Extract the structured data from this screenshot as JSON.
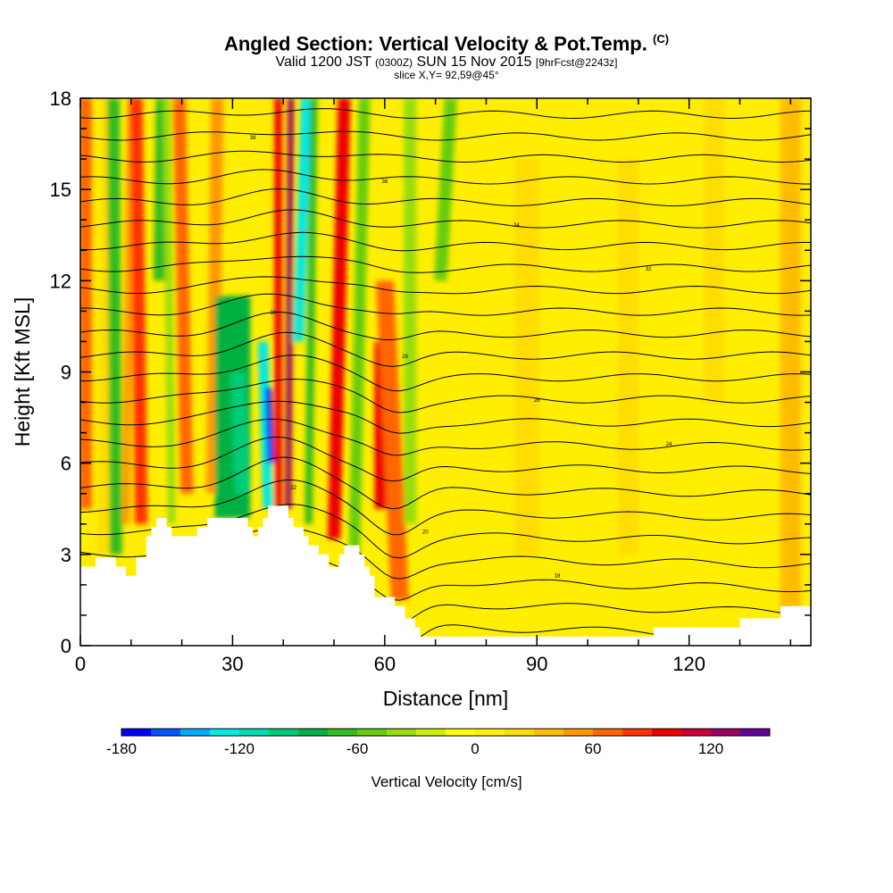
{
  "header": {
    "title_main": "Angled Section: Vertical Velocity & Pot.Temp.",
    "title_tag": "(C)",
    "valid_prefix": "Valid 1200 JST",
    "valid_utc": "(0300Z)",
    "valid_date": "SUN 15 Nov 2015",
    "forecast": "[9hrFcst@2243z]",
    "slice": "slice X,Y= 92,59@45°"
  },
  "chart_data": {
    "type": "heatmap",
    "xlabel": "Distance [nm]",
    "ylabel": "Height [Kft MSL]",
    "xlim": [
      0,
      144
    ],
    "ylim": [
      0,
      18
    ],
    "x_ticks": [
      0,
      30,
      60,
      90,
      120
    ],
    "x_tick_labels": [
      "0",
      "30",
      "60",
      "90",
      "120"
    ],
    "y_ticks": [
      0,
      3,
      6,
      9,
      12,
      15,
      18
    ],
    "y_tick_labels": [
      "0",
      "3",
      "6",
      "9",
      "12",
      "15",
      "18"
    ],
    "colorbar": {
      "title": "Vertical Velocity [cm/s]",
      "tick_values": [
        -180,
        -120,
        -60,
        0,
        60,
        120
      ],
      "tick_labels": [
        "-180",
        "-120",
        "-60",
        "0",
        "60",
        "120"
      ],
      "bins": [
        {
          "from": -180,
          "to": -165,
          "color": "#0000ff"
        },
        {
          "from": -165,
          "to": -150,
          "color": "#0055ff"
        },
        {
          "from": -150,
          "to": -135,
          "color": "#00aaff"
        },
        {
          "from": -135,
          "to": -120,
          "color": "#00e8e8"
        },
        {
          "from": -120,
          "to": -105,
          "color": "#00ddb5"
        },
        {
          "from": -105,
          "to": -90,
          "color": "#00cc77"
        },
        {
          "from": -90,
          "to": -75,
          "color": "#00b040"
        },
        {
          "from": -75,
          "to": -60,
          "color": "#33bb22"
        },
        {
          "from": -60,
          "to": -45,
          "color": "#66cc11"
        },
        {
          "from": -45,
          "to": -30,
          "color": "#99dd11"
        },
        {
          "from": -30,
          "to": -15,
          "color": "#ccee00"
        },
        {
          "from": -15,
          "to": 0,
          "color": "#ffff00"
        },
        {
          "from": 0,
          "to": 15,
          "color": "#ffee00"
        },
        {
          "from": 15,
          "to": 30,
          "color": "#ffdd00"
        },
        {
          "from": 30,
          "to": 45,
          "color": "#ffbb00"
        },
        {
          "from": 45,
          "to": 60,
          "color": "#ff9900"
        },
        {
          "from": 60,
          "to": 75,
          "color": "#ff6600"
        },
        {
          "from": 75,
          "to": 90,
          "color": "#ff3300"
        },
        {
          "from": 90,
          "to": 105,
          "color": "#ee0000"
        },
        {
          "from": 105,
          "to": 120,
          "color": "#cc0033"
        },
        {
          "from": 120,
          "to": 135,
          "color": "#990066"
        },
        {
          "from": 135,
          "to": 150,
          "color": "#660099"
        }
      ]
    },
    "bands": [
      {
        "x": 1,
        "x_top": 1,
        "width": 2.5,
        "y0": 4.5,
        "y1": 18,
        "value": 70
      },
      {
        "x": 4.5,
        "x_top": 5,
        "width": 2,
        "y0": 3,
        "y1": 18,
        "value": 20
      },
      {
        "x": 7,
        "x_top": 6.5,
        "width": 2.5,
        "y0": 3,
        "y1": 18,
        "value": -75
      },
      {
        "x": 9,
        "x_top": 10,
        "width": 1.5,
        "y0": 4,
        "y1": 18,
        "value": 45
      },
      {
        "x": 12,
        "x_top": 11,
        "width": 2.5,
        "y0": 4,
        "y1": 18,
        "value": 80
      },
      {
        "x": 15.5,
        "x_top": 16,
        "width": 2.2,
        "y0": 12,
        "y1": 18,
        "value": -75
      },
      {
        "x": 18,
        "x_top": 17,
        "width": 1.5,
        "y0": 4,
        "y1": 18,
        "value": -40
      },
      {
        "x": 21,
        "x_top": 19.5,
        "width": 2.5,
        "y0": 5,
        "y1": 18,
        "value": 60
      },
      {
        "x": 26,
        "x_top": 27,
        "width": 2.5,
        "y0": 5,
        "y1": 18,
        "value": 45
      },
      {
        "x": 30,
        "x_top": 30,
        "width": 7,
        "y0": 4.2,
        "y1": 11.5,
        "value": -80
      },
      {
        "x": 32,
        "x_top": 31,
        "width": 3,
        "y0": 5,
        "y1": 9,
        "value": -100
      },
      {
        "x": 37,
        "x_top": 36,
        "width": 2,
        "y0": 4.5,
        "y1": 10,
        "value": -130
      },
      {
        "x": 37.5,
        "x_top": 37,
        "width": 1.2,
        "y0": 6,
        "y1": 8.5,
        "value": -170
      },
      {
        "x": 39,
        "x_top": 39,
        "width": 1.5,
        "y0": 4.5,
        "y1": 18,
        "value": 90
      },
      {
        "x": 41,
        "x_top": 41.5,
        "width": 1.2,
        "y0": 4.5,
        "y1": 18,
        "value": 125
      },
      {
        "x": 43,
        "x_top": 44.5,
        "width": 2,
        "y0": 10,
        "y1": 18,
        "value": -125
      },
      {
        "x": 45,
        "x_top": 46,
        "width": 1.5,
        "y0": 4,
        "y1": 18,
        "value": -70
      },
      {
        "x": 50,
        "x_top": 52,
        "width": 2.5,
        "y0": 3.5,
        "y1": 18,
        "value": 95
      },
      {
        "x": 54,
        "x_top": 56,
        "width": 2.2,
        "y0": 3,
        "y1": 18,
        "value": -60
      },
      {
        "x": 60,
        "x_top": 60,
        "width": 4,
        "y0": 4.5,
        "y1": 10,
        "value": 100
      },
      {
        "x": 63,
        "x_top": 60,
        "width": 3.5,
        "y0": 1.5,
        "y1": 12,
        "value": 70
      },
      {
        "x": 65,
        "x_top": 65,
        "width": 2.5,
        "y0": 4,
        "y1": 18,
        "value": -40
      },
      {
        "x": 71,
        "x_top": 73,
        "width": 2.5,
        "y0": 12,
        "y1": 18,
        "value": -50
      },
      {
        "x": 88,
        "x_top": 88,
        "width": 5,
        "y0": 3,
        "y1": 16,
        "value": 25
      },
      {
        "x": 108,
        "x_top": 108,
        "width": 4,
        "y0": 3,
        "y1": 16,
        "value": 25
      },
      {
        "x": 125,
        "x_top": 125,
        "width": 4,
        "y0": 8,
        "y1": 18,
        "value": 25
      },
      {
        "x": 140,
        "x_top": 140,
        "width": 4,
        "y0": 1,
        "y1": 18,
        "value": 30
      }
    ],
    "terrain": [
      [
        0,
        2.6
      ],
      [
        3,
        2.6
      ],
      [
        3,
        2.9
      ],
      [
        7,
        2.9
      ],
      [
        7,
        2.6
      ],
      [
        9,
        2.6
      ],
      [
        9,
        2.3
      ],
      [
        11,
        2.3
      ],
      [
        11,
        2.9
      ],
      [
        13,
        2.9
      ],
      [
        13,
        3.6
      ],
      [
        14,
        3.6
      ],
      [
        14,
        3.9
      ],
      [
        15,
        3.9
      ],
      [
        15,
        4.2
      ],
      [
        17,
        4.2
      ],
      [
        17,
        3.9
      ],
      [
        18,
        3.9
      ],
      [
        18,
        3.6
      ],
      [
        23,
        3.6
      ],
      [
        23,
        3.9
      ],
      [
        25,
        3.9
      ],
      [
        25,
        4.2
      ],
      [
        33,
        4.2
      ],
      [
        33,
        3.9
      ],
      [
        34,
        3.9
      ],
      [
        34,
        3.6
      ],
      [
        35,
        3.6
      ],
      [
        35,
        3.9
      ],
      [
        36,
        3.9
      ],
      [
        36,
        4.2
      ],
      [
        37,
        4.2
      ],
      [
        37,
        4.6
      ],
      [
        41,
        4.6
      ],
      [
        41,
        4.2
      ],
      [
        42,
        4.2
      ],
      [
        42,
        3.9
      ],
      [
        44,
        3.9
      ],
      [
        44,
        3.6
      ],
      [
        45,
        3.6
      ],
      [
        45,
        3.3
      ],
      [
        47,
        3.3
      ],
      [
        47,
        3.0
      ],
      [
        49,
        3.0
      ],
      [
        49,
        2.6
      ],
      [
        51,
        2.6
      ],
      [
        51,
        3.0
      ],
      [
        52,
        3.0
      ],
      [
        52,
        3.3
      ],
      [
        55,
        3.3
      ],
      [
        55,
        3.0
      ],
      [
        56,
        3.0
      ],
      [
        56,
        2.6
      ],
      [
        57,
        2.6
      ],
      [
        57,
        2.3
      ],
      [
        58,
        2.3
      ],
      [
        58,
        1.6
      ],
      [
        62,
        1.6
      ],
      [
        62,
        1.3
      ],
      [
        64,
        1.3
      ],
      [
        64,
        0.9
      ],
      [
        66,
        0.9
      ],
      [
        66,
        0.6
      ],
      [
        67,
        0.6
      ],
      [
        67,
        0.3
      ],
      [
        113,
        0.3
      ],
      [
        113,
        0.6
      ],
      [
        130,
        0.6
      ],
      [
        130,
        0.9
      ],
      [
        138,
        0.9
      ],
      [
        138,
        1.3
      ],
      [
        144,
        1.3
      ]
    ],
    "isentropes": {
      "count": 24,
      "line_color": "#000000",
      "labels": [
        "16",
        "18",
        "20",
        "22",
        "24",
        "26",
        "28",
        "30",
        "32",
        "34",
        "36",
        "38",
        "40"
      ]
    }
  }
}
